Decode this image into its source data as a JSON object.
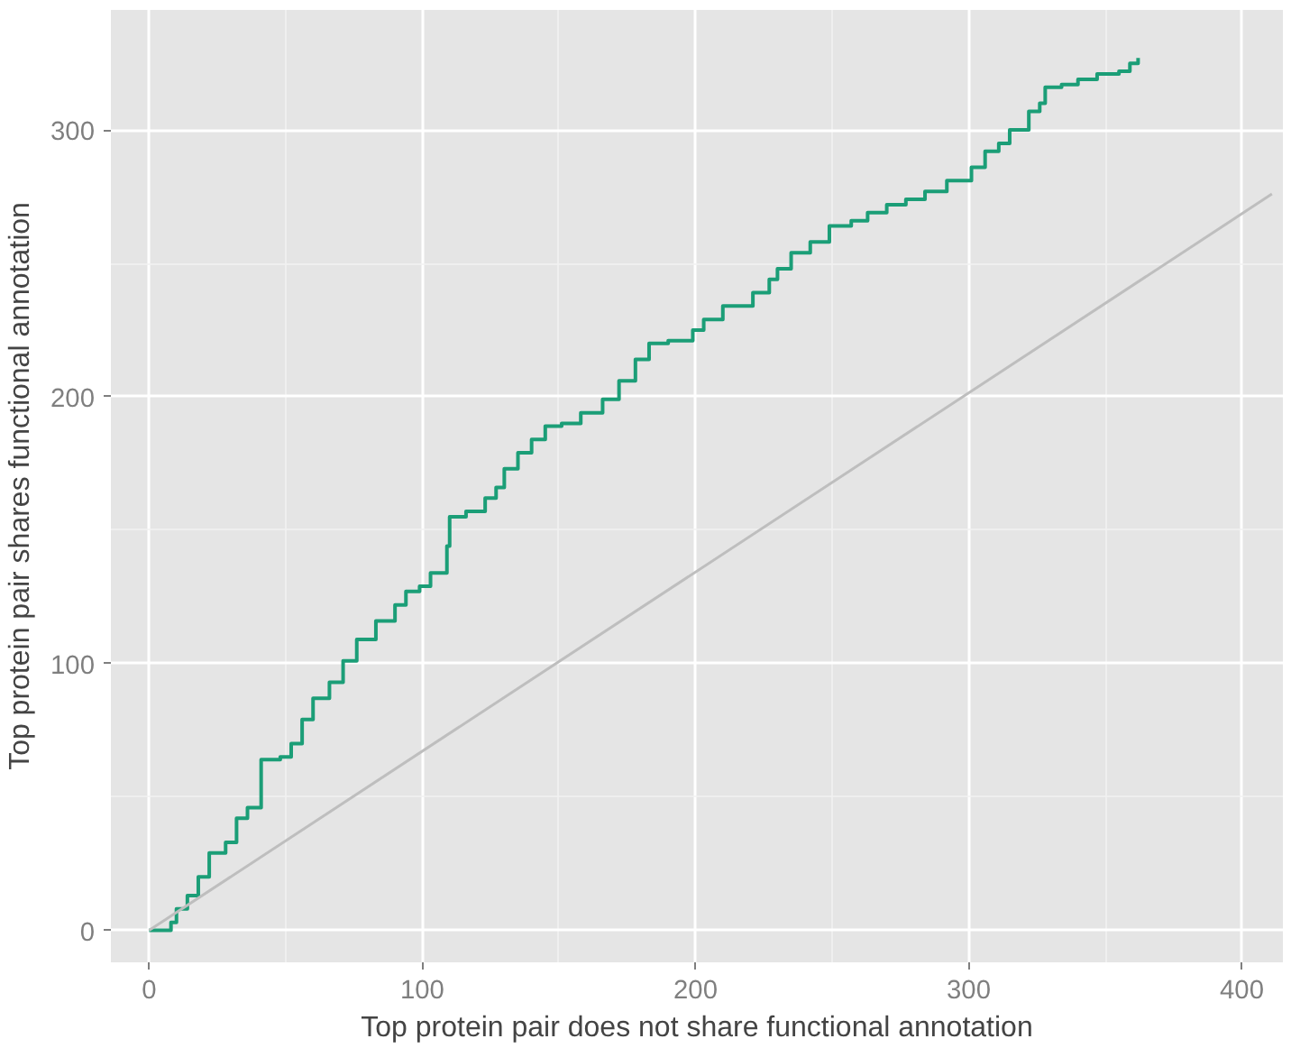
{
  "chart_data": {
    "type": "step",
    "xlabel": "Top protein pair does not share functional annotation",
    "ylabel": "Top protein pair shares functional annotation",
    "xlim": [
      -14,
      415
    ],
    "ylim": [
      -12,
      345
    ],
    "xticks": [
      0,
      100,
      200,
      300,
      400
    ],
    "yticks": [
      0,
      100,
      200,
      300
    ],
    "grid": true,
    "series": [
      {
        "color": "#1b9e77",
        "x": [
          0,
          8,
          10,
          14,
          18,
          22,
          28,
          32,
          36,
          41,
          41,
          48,
          52,
          56,
          60,
          66,
          71,
          76,
          83,
          90,
          94,
          99,
          103,
          109,
          110,
          116,
          123,
          127,
          130,
          135,
          140,
          145,
          151,
          158,
          166,
          172,
          178,
          183,
          190,
          199,
          203,
          210,
          221,
          227,
          230,
          235,
          242,
          249,
          257,
          263,
          270,
          277,
          284,
          292,
          301,
          306,
          311,
          315,
          322,
          326,
          328,
          334,
          340,
          347,
          355,
          359,
          362
        ],
        "values": [
          0,
          3,
          8,
          13,
          20,
          29,
          33,
          42,
          46,
          55,
          64,
          65,
          70,
          79,
          87,
          93,
          101,
          109,
          116,
          122,
          127,
          129,
          134,
          144,
          155,
          157,
          162,
          166,
          173,
          179,
          184,
          189,
          190,
          194,
          199,
          206,
          214,
          220,
          221,
          225,
          229,
          234,
          239,
          244,
          248,
          254,
          258,
          264,
          266,
          269,
          272,
          274,
          277,
          281,
          286,
          292,
          295,
          300,
          307,
          310,
          316,
          317,
          319,
          321,
          322,
          325,
          327
        ]
      },
      {
        "type": "line",
        "color": "#bebebe",
        "x": [
          0,
          411
        ],
        "values": [
          0,
          276
        ]
      }
    ]
  }
}
